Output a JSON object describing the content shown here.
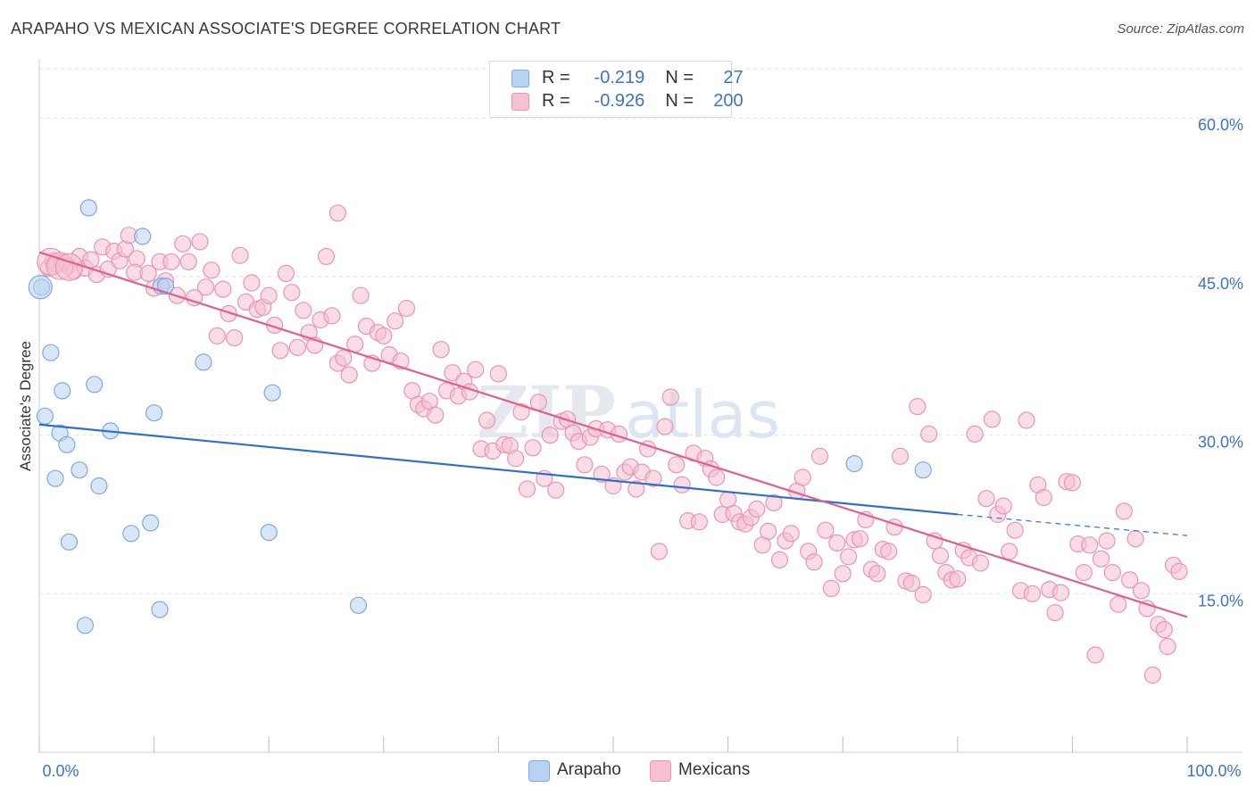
{
  "chart_data": {
    "type": "scatter",
    "title": "ARAPAHO VS MEXICAN ASSOCIATE'S DEGREE CORRELATION CHART",
    "source": "Source: ZipAtlas.com",
    "watermark": {
      "zip": "ZIP",
      "atlas": "atlas"
    },
    "ylabel": "Associate's Degree",
    "xlim": [
      0,
      100
    ],
    "ylim": [
      0,
      65
    ],
    "x_tick_labels": {
      "min": "0.0%",
      "max": "100.0%"
    },
    "y_ticks": [
      {
        "value": 15,
        "label": "15.0%"
      },
      {
        "value": 30,
        "label": "30.0%"
      },
      {
        "value": 45,
        "label": "45.0%"
      },
      {
        "value": 60,
        "label": "60.0%"
      }
    ],
    "colors": {
      "arapaho_fill": "#b9d2f3",
      "arapaho_stroke": "#7ea9e0",
      "arapaho_line": "#2f6fd0",
      "mexicans_fill": "#f6c0d1",
      "mexicans_stroke": "#eb94b1",
      "mexicans_line": "#e0608c",
      "grid": "#e2e2e2",
      "tick_label": "#3b74c9"
    },
    "legend": {
      "r_label": "R =",
      "n_label": "N =",
      "arapaho": {
        "r": "-0.219",
        "n": "27"
      },
      "mexicans": {
        "r": "-0.926",
        "n": "200"
      }
    },
    "series": [
      {
        "name": "Arapaho",
        "trend": {
          "x1": 0,
          "y1": 31.0,
          "x2": 80,
          "y2": 22.5,
          "dash_to_x": 100,
          "dash_to_y": 20.5
        },
        "points": [
          [
            0.2,
            44.0
          ],
          [
            0.5,
            31.8
          ],
          [
            1.0,
            37.8
          ],
          [
            1.4,
            25.9
          ],
          [
            1.8,
            30.2
          ],
          [
            2.0,
            34.2
          ],
          [
            2.4,
            29.1
          ],
          [
            2.6,
            19.9
          ],
          [
            3.5,
            26.7
          ],
          [
            4.0,
            12.0
          ],
          [
            4.8,
            34.8
          ],
          [
            5.2,
            25.2
          ],
          [
            6.2,
            30.4
          ],
          [
            8.0,
            20.7
          ],
          [
            9.0,
            48.8
          ],
          [
            9.7,
            21.7
          ],
          [
            10.0,
            32.1
          ],
          [
            10.5,
            13.5
          ],
          [
            10.6,
            44.1
          ],
          [
            11.0,
            44.1
          ],
          [
            4.3,
            51.5
          ],
          [
            14.3,
            36.9
          ],
          [
            20.3,
            34.0
          ],
          [
            20.0,
            20.8
          ],
          [
            27.8,
            13.9
          ],
          [
            71.0,
            27.3
          ],
          [
            77.0,
            26.7
          ]
        ]
      },
      {
        "name": "Mexicans",
        "trend": {
          "x1": 0,
          "y1": 47.3,
          "x2": 100,
          "y2": 12.8
        },
        "points": [
          [
            0.8,
            45.8
          ],
          [
            1.2,
            46.5
          ],
          [
            1.5,
            46.2
          ],
          [
            2.0,
            46.3
          ],
          [
            2.5,
            46.0
          ],
          [
            3.0,
            45.5
          ],
          [
            3.5,
            46.9
          ],
          [
            4.0,
            45.8
          ],
          [
            4.5,
            46.6
          ],
          [
            5.0,
            45.2
          ],
          [
            5.5,
            47.8
          ],
          [
            6.0,
            45.7
          ],
          [
            6.5,
            47.4
          ],
          [
            7.0,
            46.5
          ],
          [
            7.5,
            47.6
          ],
          [
            7.8,
            48.9
          ],
          [
            8.5,
            46.7
          ],
          [
            8.3,
            45.4
          ],
          [
            9.5,
            45.3
          ],
          [
            10.0,
            43.9
          ],
          [
            10.5,
            46.4
          ],
          [
            11.0,
            44.6
          ],
          [
            11.5,
            46.4
          ],
          [
            12.0,
            43.2
          ],
          [
            12.5,
            48.1
          ],
          [
            13.0,
            46.4
          ],
          [
            13.5,
            43.0
          ],
          [
            14.0,
            48.3
          ],
          [
            14.5,
            44.0
          ],
          [
            15.0,
            45.6
          ],
          [
            15.5,
            39.4
          ],
          [
            16.0,
            43.8
          ],
          [
            16.5,
            41.5
          ],
          [
            17.0,
            39.2
          ],
          [
            17.5,
            47.0
          ],
          [
            18.0,
            42.6
          ],
          [
            18.5,
            44.4
          ],
          [
            19.0,
            41.9
          ],
          [
            19.5,
            42.1
          ],
          [
            20.0,
            43.2
          ],
          [
            20.5,
            40.4
          ],
          [
            21.0,
            38.0
          ],
          [
            21.5,
            45.3
          ],
          [
            22.0,
            43.5
          ],
          [
            22.5,
            38.3
          ],
          [
            23.0,
            41.8
          ],
          [
            23.5,
            39.7
          ],
          [
            24.0,
            38.5
          ],
          [
            24.5,
            40.9
          ],
          [
            25.0,
            46.9
          ],
          [
            25.5,
            41.3
          ],
          [
            26.0,
            36.8
          ],
          [
            26.5,
            37.3
          ],
          [
            26.0,
            51.0
          ],
          [
            27.0,
            35.7
          ],
          [
            27.5,
            38.6
          ],
          [
            28.0,
            43.2
          ],
          [
            28.5,
            40.3
          ],
          [
            29.0,
            36.8
          ],
          [
            29.5,
            39.7
          ],
          [
            30.0,
            39.4
          ],
          [
            30.5,
            37.6
          ],
          [
            31.0,
            40.8
          ],
          [
            31.5,
            37.0
          ],
          [
            32.0,
            42.0
          ],
          [
            32.5,
            34.2
          ],
          [
            33.0,
            32.9
          ],
          [
            33.5,
            32.5
          ],
          [
            34.0,
            33.2
          ],
          [
            34.5,
            31.9
          ],
          [
            35.0,
            38.1
          ],
          [
            35.5,
            34.2
          ],
          [
            36.0,
            35.9
          ],
          [
            36.5,
            33.7
          ],
          [
            37.0,
            35.1
          ],
          [
            37.5,
            34.1
          ],
          [
            38.0,
            36.2
          ],
          [
            38.5,
            28.7
          ],
          [
            39.0,
            31.4
          ],
          [
            39.5,
            28.5
          ],
          [
            40.0,
            35.8
          ],
          [
            40.5,
            29.1
          ],
          [
            41.0,
            29.0
          ],
          [
            41.5,
            27.8
          ],
          [
            42.0,
            32.2
          ],
          [
            42.5,
            24.9
          ],
          [
            43.0,
            28.8
          ],
          [
            43.5,
            33.1
          ],
          [
            44.0,
            25.9
          ],
          [
            44.5,
            30.0
          ],
          [
            45.0,
            24.8
          ],
          [
            45.5,
            31.3
          ],
          [
            46.0,
            31.5
          ],
          [
            46.5,
            30.2
          ],
          [
            47.0,
            29.4
          ],
          [
            47.5,
            27.2
          ],
          [
            48.0,
            29.8
          ],
          [
            48.5,
            30.6
          ],
          [
            49.0,
            26.3
          ],
          [
            49.5,
            30.5
          ],
          [
            50.0,
            25.2
          ],
          [
            50.5,
            30.1
          ],
          [
            51.0,
            26.5
          ],
          [
            51.5,
            27.0
          ],
          [
            52.0,
            24.9
          ],
          [
            52.5,
            26.5
          ],
          [
            53.0,
            28.7
          ],
          [
            53.5,
            25.9
          ],
          [
            54.0,
            19.0
          ],
          [
            54.5,
            30.8
          ],
          [
            55.0,
            33.6
          ],
          [
            55.5,
            27.2
          ],
          [
            56.0,
            25.3
          ],
          [
            56.5,
            21.9
          ],
          [
            57.0,
            28.3
          ],
          [
            57.5,
            21.8
          ],
          [
            58.0,
            27.8
          ],
          [
            58.5,
            26.8
          ],
          [
            59.0,
            26.0
          ],
          [
            59.5,
            22.5
          ],
          [
            60.0,
            23.9
          ],
          [
            60.5,
            22.6
          ],
          [
            61.0,
            21.8
          ],
          [
            61.5,
            21.6
          ],
          [
            62.0,
            22.2
          ],
          [
            62.5,
            23.0
          ],
          [
            63.0,
            19.6
          ],
          [
            63.5,
            20.9
          ],
          [
            64.0,
            23.6
          ],
          [
            64.5,
            18.2
          ],
          [
            65.0,
            20.0
          ],
          [
            65.5,
            20.7
          ],
          [
            66.0,
            24.7
          ],
          [
            66.5,
            26.0
          ],
          [
            67.0,
            19.0
          ],
          [
            67.5,
            18.0
          ],
          [
            68.0,
            28.0
          ],
          [
            68.5,
            21.0
          ],
          [
            69.0,
            15.5
          ],
          [
            69.5,
            19.8
          ],
          [
            70.0,
            16.9
          ],
          [
            70.5,
            18.5
          ],
          [
            71.0,
            20.1
          ],
          [
            71.5,
            20.2
          ],
          [
            72.0,
            22.0
          ],
          [
            72.5,
            17.3
          ],
          [
            73.0,
            16.9
          ],
          [
            73.5,
            19.2
          ],
          [
            74.0,
            19.0
          ],
          [
            74.5,
            21.3
          ],
          [
            75.0,
            28.0
          ],
          [
            75.5,
            16.2
          ],
          [
            76.0,
            16.0
          ],
          [
            76.5,
            32.7
          ],
          [
            77.0,
            14.9
          ],
          [
            77.5,
            30.1
          ],
          [
            78.0,
            20.0
          ],
          [
            78.5,
            18.6
          ],
          [
            79.0,
            17.0
          ],
          [
            79.5,
            16.3
          ],
          [
            80.0,
            16.4
          ],
          [
            80.5,
            19.1
          ],
          [
            81.0,
            18.4
          ],
          [
            81.5,
            30.1
          ],
          [
            82.0,
            17.9
          ],
          [
            82.5,
            24.0
          ],
          [
            83.0,
            31.5
          ],
          [
            83.5,
            22.5
          ],
          [
            84.0,
            23.3
          ],
          [
            84.5,
            19.0
          ],
          [
            85.0,
            21.0
          ],
          [
            85.5,
            15.3
          ],
          [
            86.0,
            31.4
          ],
          [
            86.5,
            15.0
          ],
          [
            87.0,
            25.3
          ],
          [
            87.5,
            24.1
          ],
          [
            88.0,
            15.4
          ],
          [
            88.5,
            13.2
          ],
          [
            89.0,
            15.1
          ],
          [
            89.5,
            25.6
          ],
          [
            90.0,
            25.5
          ],
          [
            90.5,
            19.7
          ],
          [
            91.0,
            17.0
          ],
          [
            91.5,
            19.6
          ],
          [
            92.0,
            9.2
          ],
          [
            92.5,
            18.3
          ],
          [
            93.0,
            20.0
          ],
          [
            93.5,
            17.0
          ],
          [
            94.0,
            14.0
          ],
          [
            94.5,
            22.8
          ],
          [
            95.0,
            16.3
          ],
          [
            95.5,
            20.2
          ],
          [
            96.0,
            15.3
          ],
          [
            96.5,
            13.6
          ],
          [
            97.0,
            7.3
          ],
          [
            97.5,
            12.1
          ],
          [
            98.0,
            11.6
          ],
          [
            98.3,
            10.0
          ],
          [
            98.8,
            17.7
          ],
          [
            99.3,
            17.1
          ]
        ]
      }
    ]
  }
}
